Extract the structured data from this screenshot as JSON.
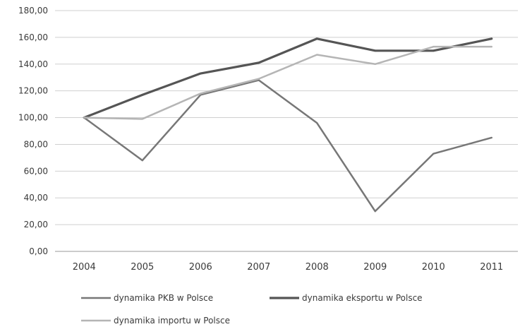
{
  "chart_data": {
    "type": "line",
    "title": "",
    "xlabel": "",
    "ylabel": "",
    "categories": [
      "2004",
      "2005",
      "2006",
      "2007",
      "2008",
      "2009",
      "2010",
      "2011"
    ],
    "ylim": [
      0,
      180
    ],
    "yticks": [
      "0,00",
      "20,00",
      "40,00",
      "60,00",
      "80,00",
      "100,00",
      "120,00",
      "140,00",
      "160,00",
      "180,00"
    ],
    "grid": true,
    "legend_position": "bottom",
    "series": [
      {
        "name": "dynamika PKB w Polsce",
        "values": [
          100,
          68,
          117,
          128,
          96,
          30,
          73,
          85
        ],
        "color": "#777777"
      },
      {
        "name": "dynamika eksportu w Polsce",
        "values": [
          100,
          117,
          133,
          141,
          159,
          150,
          150,
          159
        ],
        "color": "#555555"
      },
      {
        "name": "dynamika importu w Polsce",
        "values": [
          100,
          99,
          118,
          129,
          147,
          140,
          153,
          153
        ],
        "color": "#b5b5b5"
      }
    ]
  }
}
